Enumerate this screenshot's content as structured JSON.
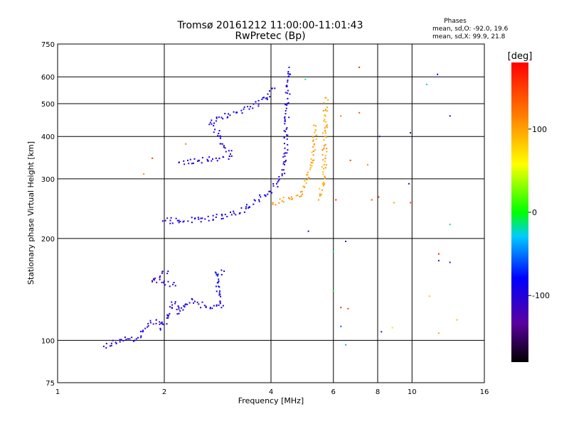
{
  "chart_data": {
    "type": "scatter",
    "title": "Tromsø 20161212 11:00:00-11:01:43",
    "subtitle": "RwPretec (Bp)",
    "xlabel": "Frequency [MHz]",
    "ylabel": "Stationary phase Virtual Height [km]",
    "x_scale": "log",
    "y_scale": "log",
    "xlim": [
      1,
      16
    ],
    "ylim": [
      75,
      750
    ],
    "x_ticks": [
      1,
      2,
      4,
      6,
      8,
      10,
      16
    ],
    "y_ticks": [
      75,
      100,
      200,
      300,
      400,
      500,
      600,
      750
    ],
    "grid": true,
    "legend": {
      "title": "Phases",
      "line1": "mean, sd,O: -92.0, 19.6",
      "line2": "mean, sd,X:  99.9, 21.8",
      "position": "top-right"
    },
    "colorbar": {
      "label": "[deg]",
      "ticks": [
        100,
        0,
        -100
      ],
      "range": [
        -180,
        180
      ]
    },
    "series": [
      {
        "mode": "O",
        "trace_points": [
          [
            1.35,
            96,
            -95
          ],
          [
            1.42,
            98,
            -100
          ],
          [
            1.5,
            99,
            -90
          ],
          [
            1.58,
            101,
            -105
          ],
          [
            1.65,
            100,
            -98
          ],
          [
            1.72,
            103,
            -92
          ],
          [
            1.8,
            112,
            -100
          ],
          [
            1.9,
            115,
            -110
          ],
          [
            1.95,
            108,
            -95
          ],
          [
            2.05,
            118,
            -98
          ],
          [
            2.1,
            125,
            -100
          ],
          [
            2.15,
            130,
            -105
          ],
          [
            2.2,
            120,
            -92
          ],
          [
            2.3,
            128,
            -95
          ],
          [
            2.4,
            132,
            -98
          ],
          [
            2.5,
            128,
            -100
          ],
          [
            2.7,
            125,
            -96
          ],
          [
            2.9,
            125,
            -94
          ],
          [
            2.8,
            158,
            -85
          ],
          [
            2.95,
            160,
            -90
          ],
          [
            2.05,
            160,
            -110
          ],
          [
            1.85,
            150,
            -115
          ],
          [
            2.15,
            145,
            -100
          ],
          [
            1.98,
            225,
            -100
          ],
          [
            2.2,
            226,
            -98
          ],
          [
            2.5,
            228,
            -95
          ],
          [
            2.8,
            231,
            -97
          ],
          [
            3.1,
            235,
            -95
          ],
          [
            3.4,
            245,
            -90
          ],
          [
            3.7,
            260,
            -95
          ],
          [
            3.95,
            275,
            -92
          ],
          [
            4.15,
            290,
            -95
          ],
          [
            4.3,
            310,
            -98
          ],
          [
            4.38,
            350,
            -96
          ],
          [
            4.42,
            420,
            -95
          ],
          [
            4.45,
            500,
            -97
          ],
          [
            4.48,
            600,
            -95
          ],
          [
            4.5,
            640,
            -92
          ],
          [
            2.2,
            335,
            -100
          ],
          [
            2.5,
            340,
            -95
          ],
          [
            2.8,
            345,
            -92
          ],
          [
            3.1,
            350,
            -96
          ],
          [
            2.7,
            440,
            -100
          ],
          [
            2.9,
            455,
            -96
          ],
          [
            3.2,
            470,
            -92
          ],
          [
            3.5,
            490,
            -94
          ],
          [
            3.9,
            520,
            -96
          ],
          [
            4.1,
            555,
            -90
          ]
        ]
      },
      {
        "mode": "X",
        "trace_points": [
          [
            4.05,
            255,
            110
          ],
          [
            4.3,
            258,
            105
          ],
          [
            4.6,
            262,
            100
          ],
          [
            4.9,
            275,
            95
          ],
          [
            5.1,
            300,
            98
          ],
          [
            5.25,
            340,
            100
          ],
          [
            5.3,
            380,
            102
          ],
          [
            5.35,
            430,
            98
          ],
          [
            5.45,
            260,
            100
          ],
          [
            5.6,
            290,
            96
          ],
          [
            5.65,
            330,
            100
          ],
          [
            5.68,
            400,
            104
          ],
          [
            5.7,
            460,
            100
          ],
          [
            5.72,
            520,
            98
          ]
        ]
      }
    ],
    "scattered_points": [
      [
        6.3,
        460,
        120
      ],
      [
        6.7,
        340,
        150
      ],
      [
        7.1,
        640,
        160
      ],
      [
        7.1,
        470,
        140
      ],
      [
        7.5,
        330,
        110
      ],
      [
        7.7,
        260,
        140
      ],
      [
        8.1,
        400,
        -115
      ],
      [
        8.05,
        265,
        160
      ],
      [
        8.9,
        255,
        100
      ],
      [
        9.9,
        410,
        -150
      ],
      [
        9.8,
        290,
        -130
      ],
      [
        9.9,
        255,
        140
      ],
      [
        11.0,
        570,
        -20
      ],
      [
        11.8,
        610,
        -90
      ],
      [
        12.8,
        460,
        -120
      ],
      [
        12.8,
        220,
        -20
      ],
      [
        11.9,
        180,
        170
      ],
      [
        11.9,
        172,
        -120
      ],
      [
        12.8,
        170,
        -125
      ],
      [
        11.2,
        135,
        80
      ],
      [
        13.4,
        115,
        90
      ],
      [
        11.9,
        105,
        100
      ],
      [
        6.3,
        125,
        160
      ],
      [
        6.3,
        110,
        -60
      ],
      [
        6.6,
        124,
        150
      ],
      [
        6.5,
        97,
        -40
      ],
      [
        8.2,
        106,
        -120
      ],
      [
        8.8,
        109,
        40
      ],
      [
        6.0,
        183,
        -20
      ],
      [
        6.5,
        196,
        -120
      ],
      [
        6.0,
        140,
        -10
      ],
      [
        5.1,
        210,
        -120
      ],
      [
        5.0,
        590,
        -20
      ],
      [
        6.1,
        260,
        160
      ],
      [
        1.75,
        310,
        110
      ],
      [
        2.3,
        380,
        120
      ],
      [
        1.85,
        345,
        150
      ]
    ]
  }
}
